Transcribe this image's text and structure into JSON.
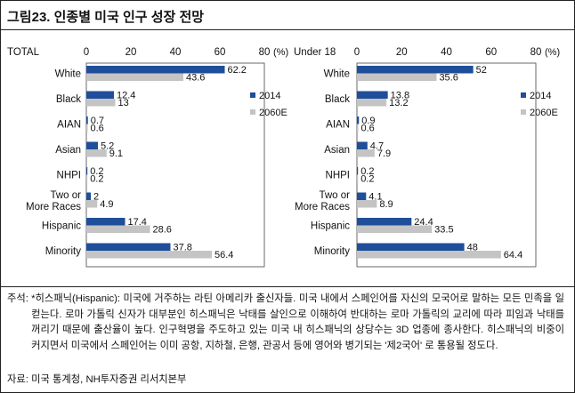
{
  "title": "그림23. 인종별 미국 인구 성장 전망",
  "chart_data": [
    {
      "type": "bar",
      "orientation": "horizontal",
      "title": "TOTAL",
      "unit": "(%)",
      "xlim": [
        0,
        80
      ],
      "ticks": [
        "0",
        "20",
        "40",
        "60",
        "80"
      ],
      "categories": [
        "White",
        "Black",
        "AIAN",
        "Asian",
        "NHPI",
        "Two or More Races",
        "Hispanic",
        "Minority"
      ],
      "category_lines": [
        [
          "White"
        ],
        [
          "Black"
        ],
        [
          "AIAN"
        ],
        [
          "Asian"
        ],
        [
          "NHPI"
        ],
        [
          "Two or",
          "More Races"
        ],
        [
          "Hispanic"
        ],
        [
          "Minority"
        ]
      ],
      "series": [
        {
          "name": "2014",
          "values": [
            62.2,
            12.4,
            0.7,
            5.2,
            0.2,
            2,
            17.4,
            37.8
          ],
          "labels": [
            "62.2",
            "12.4",
            "0.7",
            "5.2",
            "0.2",
            "2",
            "17.4",
            "37.8"
          ],
          "color": "#1f4e9a"
        },
        {
          "name": "2060E",
          "values": [
            43.6,
            13,
            0.6,
            9.1,
            0.2,
            4.9,
            28.6,
            56.4
          ],
          "labels": [
            "43.6",
            "13",
            "0.6",
            "9.1",
            "0.2",
            "4.9",
            "28.6",
            "56.4"
          ],
          "color": "#c4c4c4"
        }
      ]
    },
    {
      "type": "bar",
      "orientation": "horizontal",
      "title": "Under 18",
      "unit": "(%)",
      "xlim": [
        0,
        80
      ],
      "ticks": [
        "0",
        "20",
        "40",
        "60",
        "80"
      ],
      "categories": [
        "White",
        "Black",
        "AIAN",
        "Asian",
        "NHPI",
        "Two or More Races",
        "Hispanic",
        "Minority"
      ],
      "category_lines": [
        [
          "White"
        ],
        [
          "Black"
        ],
        [
          "AIAN"
        ],
        [
          "Asian"
        ],
        [
          "NHPI"
        ],
        [
          "Two or",
          "More Races"
        ],
        [
          "Hispanic"
        ],
        [
          "Minority"
        ]
      ],
      "series": [
        {
          "name": "2014",
          "values": [
            52,
            13.8,
            0.9,
            4.7,
            0.2,
            4.1,
            24.4,
            48
          ],
          "labels": [
            "52",
            "13.8",
            "0.9",
            "4.7",
            "0.2",
            "4.1",
            "24.4",
            "48"
          ],
          "color": "#1f4e9a"
        },
        {
          "name": "2060E",
          "values": [
            35.6,
            13.2,
            0.6,
            7.9,
            0.2,
            8.9,
            33.5,
            64.4
          ],
          "labels": [
            "35.6",
            "13.2",
            "0.6",
            "7.9",
            "0.2",
            "8.9",
            "33.5",
            "64.4"
          ],
          "color": "#c4c4c4"
        }
      ]
    }
  ],
  "note_label": "주석: ",
  "note": "*히스패닉(Hispanic): 미국에 거주하는 라틴 아메리카 출신자들. 미국 내에서 스페인어를 자신의 모국어로 말하는 모든 민족을 일컫는다. 로마 가톨릭 신자가 대부분인 히스패닉은 낙태를 살인으로 이해하여 반대하는 로마 가톨릭의 교리에 따라 피임과 낙태를 꺼리기 때문에 출산율이 높다. 인구혁명을 주도하고 있는 미국 내 히스패닉의 상당수는 3D 업종에 종사한다. 히스패닉의 비중이 커지면서 미국에서 스페인어는 이미 공항, 지하철, 은행, 관공서 등에 영어와 병기되는 '제2국어' 로 통용될 정도다.",
  "source": "자료: 미국 통계청, NH투자증권 리서치본부"
}
